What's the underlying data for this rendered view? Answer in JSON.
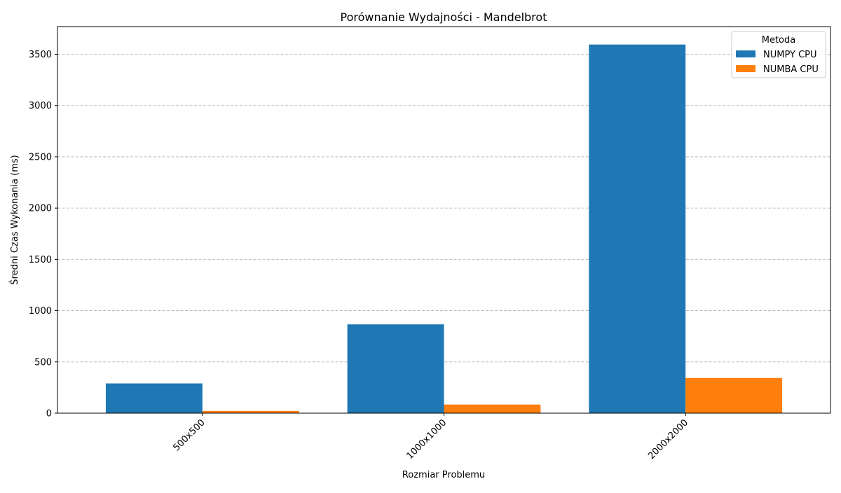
{
  "chart_data": {
    "type": "bar",
    "title": "Porównanie Wydajności - Mandelbrot",
    "xlabel": "Rozmiar Problemu",
    "ylabel": "Średni Czas Wykonania (ms)",
    "categories": [
      "500x500",
      "1000x1000",
      "2000x2000"
    ],
    "series": [
      {
        "name": "NUMPY CPU",
        "color": "#1f77b4",
        "values": [
          290,
          866,
          3595
        ]
      },
      {
        "name": "NUMBA CPU",
        "color": "#ff7f0e",
        "values": [
          22,
          84,
          343
        ]
      }
    ],
    "ylim": [
      0,
      3770
    ],
    "yticks": [
      0,
      500,
      1000,
      1500,
      2000,
      2500,
      3000,
      3500
    ],
    "grid": "y-dashed",
    "legend": {
      "title": "Metoda",
      "position": "top-right"
    }
  }
}
